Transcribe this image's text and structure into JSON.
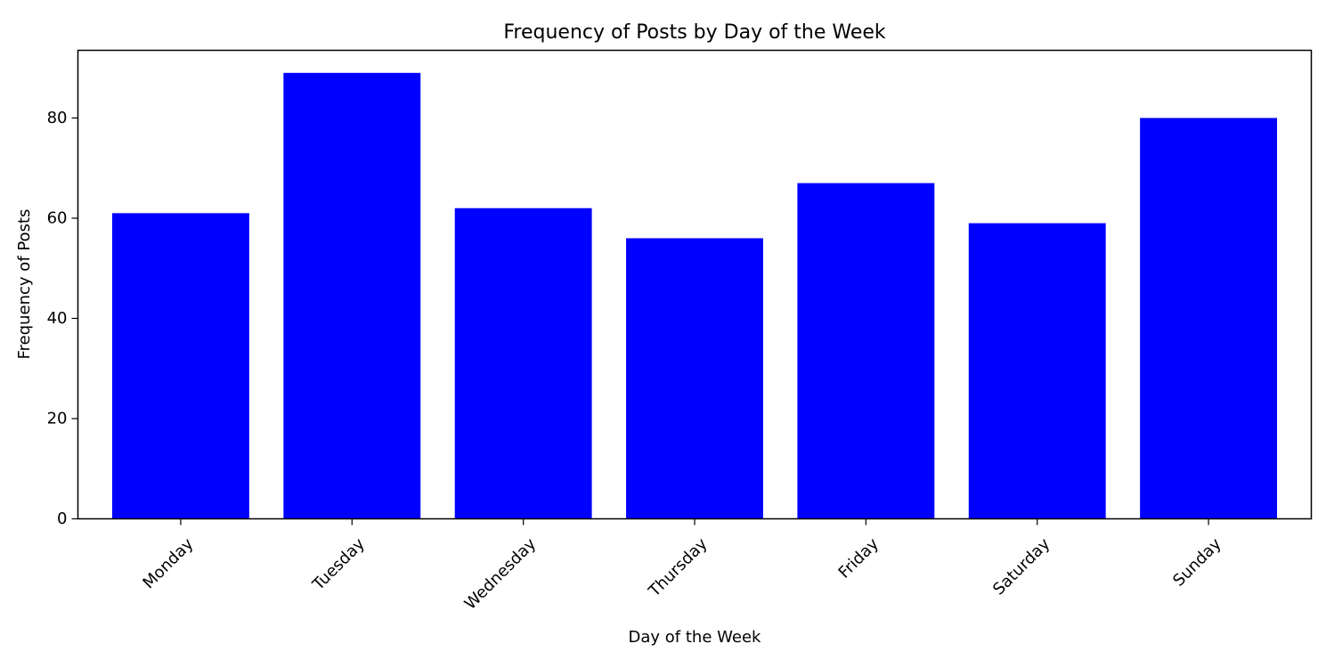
{
  "chart_data": {
    "type": "bar",
    "title": "Frequency of Posts by Day of the Week",
    "xlabel": "Day of the Week",
    "ylabel": "Frequency of Posts",
    "categories": [
      "Monday",
      "Tuesday",
      "Wednesday",
      "Thursday",
      "Friday",
      "Saturday",
      "Sunday"
    ],
    "values": [
      61,
      89,
      62,
      56,
      67,
      59,
      80
    ],
    "ylim": [
      0,
      93.5
    ],
    "yticks": [
      0,
      20,
      40,
      60,
      80
    ],
    "ytick_labels": [
      "0",
      "20",
      "40",
      "60",
      "80"
    ],
    "bar_color": "#0000ff",
    "grid": false,
    "legend": "none",
    "xtick_rotation_deg": 45
  }
}
